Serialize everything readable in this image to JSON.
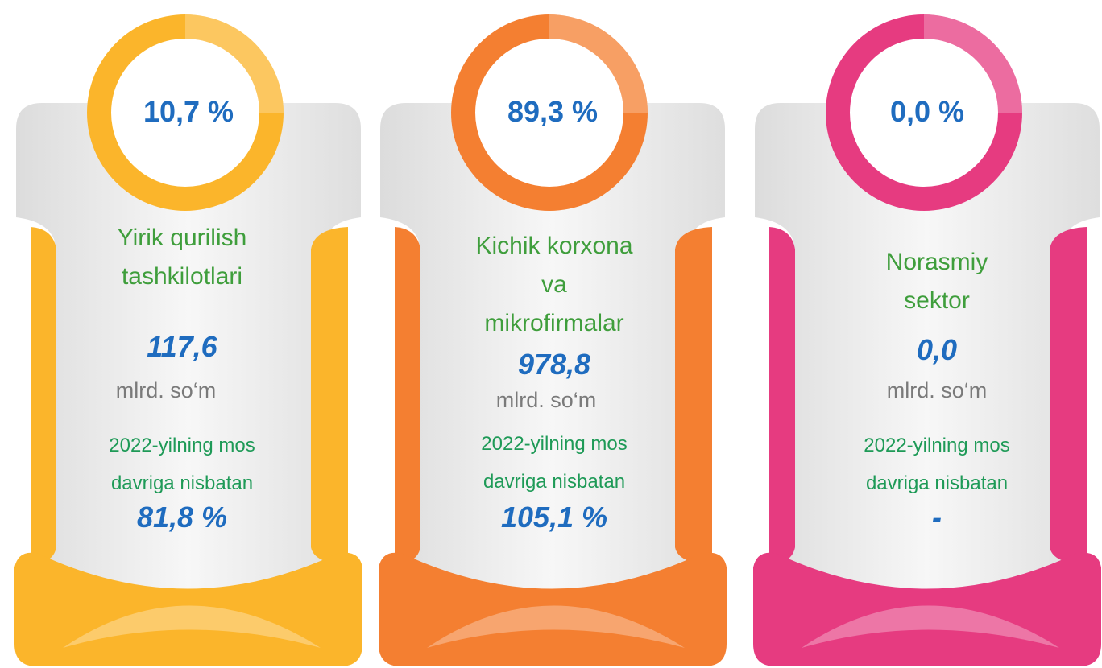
{
  "cards": [
    {
      "color": "#fbb52b",
      "percent": "10,7 %",
      "title": [
        "Yirik qurilish",
        "tashkilotlari"
      ],
      "value": "117,6",
      "unit": "mlrd. so‘m",
      "compare": [
        "2022-yilning mos",
        "davriga nisbatan"
      ],
      "change": "81,8 %"
    },
    {
      "color": "#f47f31",
      "percent": "89,3 %",
      "title": [
        "Kichik korxona",
        "va",
        "mikrofirmalar"
      ],
      "value": "978,8",
      "unit": "mlrd. so‘m",
      "compare": [
        "2022-yilning mos",
        "davriga nisbatan"
      ],
      "change": "105,1 %"
    },
    {
      "color": "#e63b80",
      "percent": "0,0 %",
      "title": [
        "Norasmiy",
        "sektor"
      ],
      "value": "0,0",
      "unit": "mlrd. so‘m",
      "compare": [
        "2022-yilning mos",
        "davriga nisbatan"
      ],
      "change": "-"
    }
  ]
}
